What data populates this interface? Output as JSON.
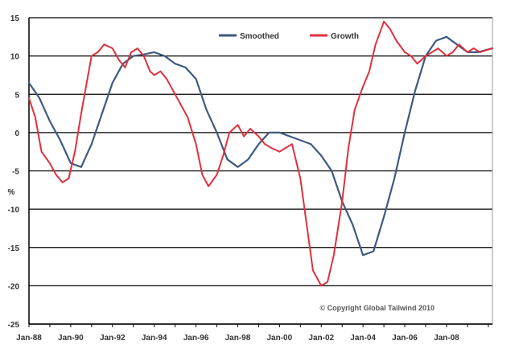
{
  "chart_data": {
    "type": "line",
    "title": "",
    "xlabel": "",
    "ylabel": "%",
    "ylim": [
      -25,
      15
    ],
    "yticks": [
      15,
      10,
      5,
      0,
      -5,
      -10,
      -15,
      -20,
      -25
    ],
    "x_tick_labels": [
      "Jan-88",
      "Jan-90",
      "Jan-92",
      "Jan-94",
      "Jan-96",
      "Jan-98",
      "Jan-00",
      "Jan-02",
      "Jan-04",
      "Jan-06",
      "Jan-08"
    ],
    "x_tick_positions": [
      1988,
      1990,
      1992,
      1994,
      1996,
      1998,
      2000,
      2002,
      2004,
      2006,
      2008
    ],
    "xlim": [
      1988,
      2010.2
    ],
    "grid": true,
    "legend_position": "top-right",
    "annotation": "© Copyright Global Tailwind 2010",
    "colors": {
      "series_1": "#3d5a80",
      "series_2": "#e0303c",
      "grid": "#000000",
      "axis": "#000000"
    },
    "series": [
      {
        "name": "Smoothed",
        "x": [
          1988.0,
          1988.5,
          1989.0,
          1989.5,
          1990.0,
          1990.5,
          1991.0,
          1991.5,
          1992.0,
          1992.5,
          1993.0,
          1993.5,
          1994.0,
          1994.5,
          1995.0,
          1995.5,
          1996.0,
          1996.5,
          1997.0,
          1997.5,
          1998.0,
          1998.5,
          1999.0,
          1999.5,
          2000.0,
          2000.5,
          2001.0,
          2001.5,
          2002.0,
          2002.5,
          2003.0,
          2003.5,
          2004.0,
          2004.5,
          2005.0,
          2005.5,
          2006.0,
          2006.5,
          2007.0,
          2007.5,
          2008.0,
          2008.5,
          2009.0,
          2009.5,
          2010.2
        ],
        "values": [
          6.5,
          4.5,
          1.5,
          -1.0,
          -4.0,
          -4.5,
          -1.5,
          2.5,
          6.5,
          9.0,
          10.0,
          10.2,
          10.5,
          10.0,
          9.0,
          8.5,
          7.0,
          3.0,
          0.0,
          -3.5,
          -4.5,
          -3.5,
          -1.5,
          0.0,
          0.0,
          -0.5,
          -1.0,
          -1.5,
          -3.0,
          -5.0,
          -9.0,
          -12.0,
          -16.0,
          -15.5,
          -11.0,
          -6.0,
          0.0,
          5.5,
          10.0,
          12.0,
          12.5,
          11.5,
          10.5,
          10.5,
          11.0
        ]
      },
      {
        "name": "Growth",
        "x": [
          1988.0,
          1988.3,
          1988.6,
          1989.0,
          1989.3,
          1989.6,
          1989.9,
          1990.2,
          1990.5,
          1990.8,
          1991.0,
          1991.3,
          1991.6,
          1992.0,
          1992.3,
          1992.6,
          1992.9,
          1993.2,
          1993.5,
          1993.8,
          1994.0,
          1994.3,
          1994.6,
          1995.0,
          1995.3,
          1995.6,
          1996.0,
          1996.3,
          1996.6,
          1997.0,
          1997.3,
          1997.6,
          1998.0,
          1998.3,
          1998.6,
          1999.0,
          1999.3,
          1999.6,
          2000.0,
          2000.3,
          2000.6,
          2001.0,
          2001.3,
          2001.6,
          2002.0,
          2002.3,
          2002.6,
          2003.0,
          2003.3,
          2003.6,
          2004.0,
          2004.3,
          2004.6,
          2005.0,
          2005.3,
          2005.6,
          2006.0,
          2006.3,
          2006.6,
          2007.0,
          2007.3,
          2007.6,
          2008.0,
          2008.3,
          2008.6,
          2009.0,
          2009.3,
          2009.6,
          2010.2
        ],
        "values": [
          4.5,
          2.0,
          -2.5,
          -4.0,
          -5.5,
          -6.5,
          -6.0,
          -2.5,
          2.5,
          7.0,
          10.0,
          10.5,
          11.5,
          11.0,
          9.5,
          8.5,
          10.5,
          11.0,
          10.0,
          8.0,
          7.5,
          8.0,
          7.0,
          5.0,
          3.5,
          2.0,
          -1.5,
          -5.5,
          -7.0,
          -5.5,
          -3.0,
          0.0,
          1.0,
          -0.5,
          0.5,
          -0.5,
          -1.5,
          -2.0,
          -2.5,
          -2.0,
          -1.5,
          -6.0,
          -12.0,
          -18.0,
          -20.0,
          -19.5,
          -16.0,
          -9.0,
          -2.0,
          3.0,
          6.0,
          8.0,
          11.5,
          14.5,
          13.5,
          12.0,
          10.5,
          10.0,
          9.0,
          10.0,
          10.5,
          11.0,
          10.0,
          10.5,
          11.5,
          10.5,
          11.0,
          10.5,
          11.0
        ]
      }
    ]
  }
}
